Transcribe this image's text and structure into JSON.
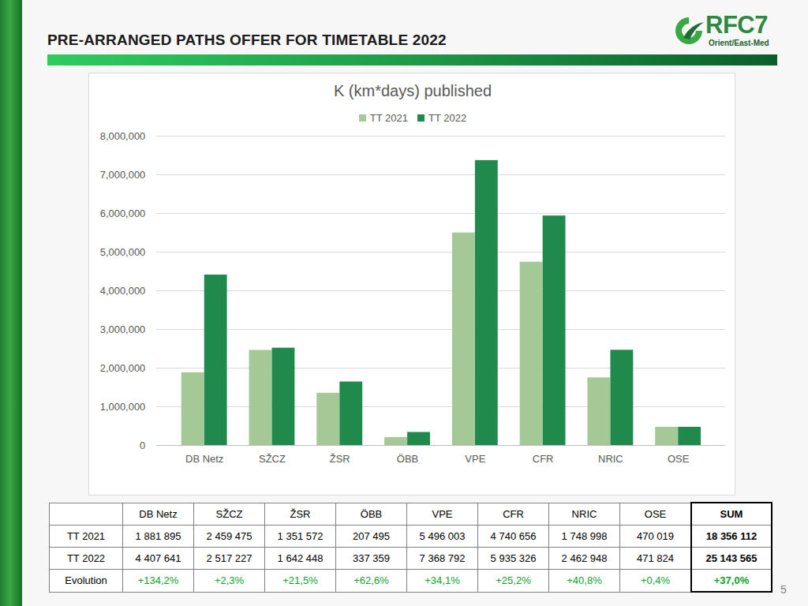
{
  "header": {
    "title": "PRE-ARRANGED PATHS OFFER FOR TIMETABLE 2022",
    "logo_name": "RFC7",
    "logo_subtitle": "Orient/East-Med"
  },
  "chart_data": {
    "type": "bar",
    "title": "K (km*days) published",
    "categories": [
      "DB Netz",
      "SŽCZ",
      "ŽSR",
      "ÖBB",
      "VPE",
      "CFR",
      "NRIC",
      "OSE"
    ],
    "series": [
      {
        "name": "TT 2021",
        "color": "#a5c996",
        "values": [
          1881895,
          2459475,
          1351572,
          207495,
          5496003,
          4740656,
          1748998,
          470019
        ]
      },
      {
        "name": "TT 2022",
        "color": "#1f8a4c",
        "values": [
          4407641,
          2517227,
          1642448,
          337359,
          7368792,
          5935326,
          2462948,
          471824
        ]
      }
    ],
    "ylim": [
      0,
      8000000
    ],
    "yticks": [
      0,
      {
        "value": 1000000,
        "label": "1,000,000"
      },
      {
        "value": 2000000,
        "label": "2,000,000"
      },
      {
        "value": 3000000,
        "label": "3,000,000"
      },
      {
        "value": 4000000,
        "label": "4,000,000"
      },
      {
        "value": 5000000,
        "label": "5,000,000"
      },
      {
        "value": 6000000,
        "label": "6,000,000"
      },
      {
        "value": 7000000,
        "label": "7,000,000"
      },
      {
        "value": 8000000,
        "label": "8,000,000"
      }
    ],
    "grid": true,
    "legend": "top"
  },
  "table": {
    "columns": [
      "DB Netz",
      "SŽCZ",
      "ŽSR",
      "ÖBB",
      "VPE",
      "CFR",
      "NRIC",
      "OSE",
      "SUM"
    ],
    "rows": [
      {
        "label": "TT 2021",
        "cells": [
          "1 881 895",
          "2 459 475",
          "1 351 572",
          "207 495",
          "5 496 003",
          "4 740 656",
          "1 748 998",
          "470 019",
          "18 356 112"
        ]
      },
      {
        "label": "TT 2022",
        "cells": [
          "4 407 641",
          "2 517 227",
          "1 642 448",
          "337 359",
          "7 368 792",
          "5 935 326",
          "2 462 948",
          "471 824",
          "25 143 565"
        ]
      },
      {
        "label": "Evolution",
        "cells": [
          "+134,2%",
          "+2,3%",
          "+21,5%",
          "+62,6%",
          "+34,1%",
          "+25,2%",
          "+40,8%",
          "+0,4%",
          "+37,0%"
        ]
      }
    ]
  },
  "page_number": "5"
}
